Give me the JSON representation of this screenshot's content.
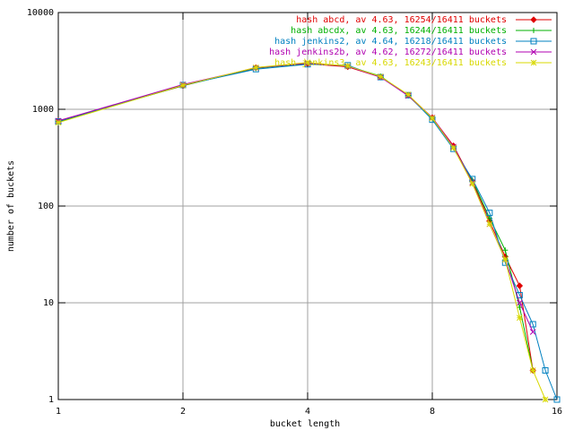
{
  "chart_data": {
    "type": "line",
    "xlabel": "bucket length",
    "ylabel": "number of buckets",
    "xscale": "log",
    "yscale": "log",
    "xlim": [
      1,
      16
    ],
    "ylim": [
      1,
      10000
    ],
    "xticks": [
      1,
      2,
      4,
      8,
      16
    ],
    "yticks": [
      1,
      10,
      100,
      1000,
      10000
    ],
    "grid": true,
    "legend": "top-right",
    "x": [
      1,
      2,
      3,
      4,
      5,
      6,
      7,
      8,
      9,
      10,
      11,
      12,
      13,
      14,
      15,
      16
    ],
    "series": [
      {
        "name": "hash abcd, av 4.63, 16254/16411 buckets",
        "color": "#e00000",
        "marker": "diamond",
        "values": [
          760,
          1750,
          2700,
          2950,
          2750,
          2150,
          1400,
          820,
          420,
          180,
          70,
          30,
          15,
          2,
          null,
          null
        ]
      },
      {
        "name": "hash abcdx, av 4.63, 16244/16411 buckets",
        "color": "#00b000",
        "marker": "plus",
        "values": [
          740,
          1760,
          2650,
          2980,
          2800,
          2200,
          1380,
          800,
          400,
          185,
          75,
          35,
          9,
          2,
          null,
          null
        ]
      },
      {
        "name": "hash jenkins2, av 4.64, 16218/16411 buckets",
        "color": "#0080c0",
        "marker": "square",
        "values": [
          750,
          1780,
          2600,
          2920,
          2850,
          2150,
          1400,
          780,
          390,
          190,
          85,
          26,
          12,
          6,
          2,
          1
        ]
      },
      {
        "name": "hash jenkins2b, av 4.62, 16272/16411 buckets",
        "color": "#b000b0",
        "marker": "cross",
        "values": [
          760,
          1800,
          2680,
          3000,
          2780,
          2150,
          1380,
          820,
          410,
          175,
          65,
          28,
          10,
          5,
          null,
          null
        ]
      },
      {
        "name": "hash jenkins3, av 4.63, 16243/16411 buckets",
        "color": "#d8d800",
        "marker": "star",
        "values": [
          730,
          1770,
          2700,
          3050,
          2800,
          2180,
          1420,
          810,
          400,
          170,
          65,
          28,
          7,
          2,
          1,
          null
        ]
      }
    ]
  }
}
